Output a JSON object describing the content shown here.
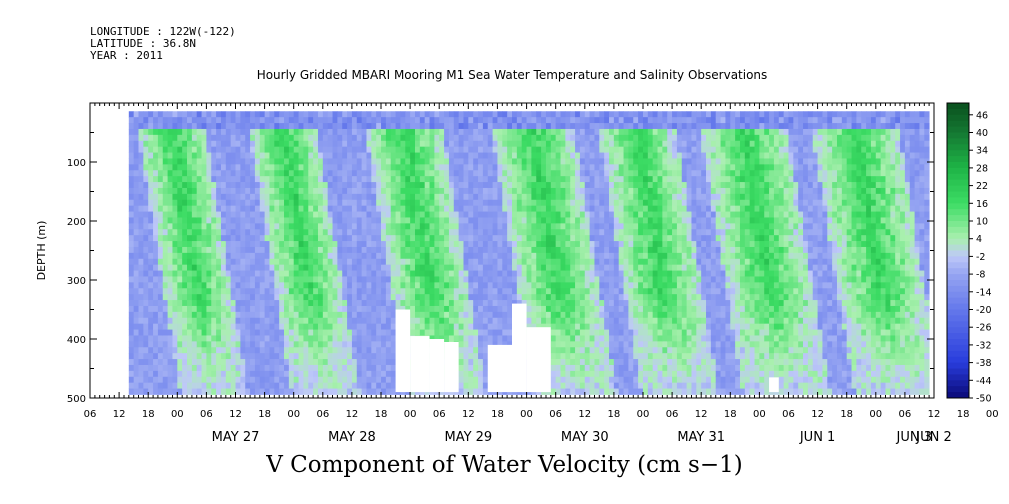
{
  "header": {
    "longitude": "LONGITUDE : 122W(-122)",
    "latitude": "LATITUDE : 36.8N",
    "year": "YEAR : 2011"
  },
  "chart_data": {
    "type": "heatmap",
    "title": "Hourly Gridded MBARI Mooring M1 Sea Water Temperature and Salinity Observations",
    "variable_title": "V Component of Water Velocity (cm s−1)",
    "ylabel": "DEPTH (m)",
    "ylim": [
      500,
      0
    ],
    "y_ticks": [
      100,
      200,
      300,
      400,
      500
    ],
    "x_range_hours_from_may26_06": [
      0,
      174
    ],
    "x_hour_ticks": [
      "06",
      "12",
      "18",
      "00",
      "06",
      "12",
      "18",
      "00",
      "06",
      "12",
      "18",
      "00",
      "06",
      "12",
      "18",
      "00",
      "06",
      "12",
      "18",
      "00",
      "06",
      "12",
      "18",
      "00",
      "06",
      "12",
      "18",
      "00",
      "06",
      "12",
      "18",
      "00",
      "06"
    ],
    "day_labels": [
      {
        "label": "MAY 27",
        "hour": 30
      },
      {
        "label": "MAY 28",
        "hour": 54
      },
      {
        "label": "MAY 29",
        "hour": 78
      },
      {
        "label": "MAY 30",
        "hour": 102
      },
      {
        "label": "MAY 31",
        "hour": 126
      },
      {
        "label": "JUN  1",
        "hour": 150
      },
      {
        "label": "JUN  2",
        "hour": 174
      },
      {
        "label": "JUN  3",
        "hour": 198
      }
    ],
    "data_extent": {
      "start_hour": 8,
      "end_hour": 173,
      "top_depth": 14,
      "bottom_depth": 490
    },
    "colorbar": {
      "levels": [
        46,
        40,
        34,
        28,
        22,
        16,
        10,
        4,
        -2,
        -8,
        -14,
        -20,
        -26,
        -32,
        -38,
        -44,
        -50
      ],
      "range": [
        -50,
        50
      ]
    },
    "positive_bands_hours": [
      [
        14,
        24
      ],
      [
        37,
        47
      ],
      [
        61,
        73
      ],
      [
        87,
        100
      ],
      [
        109,
        121
      ],
      [
        130,
        144
      ],
      [
        153,
        167
      ]
    ],
    "colors": {
      "positive": "#22d060",
      "light_positive": "#a8f0b0",
      "light_negative": "#b8c4f4",
      "negative": "#7f8ef0",
      "strong_negative": "#3a4ee8",
      "missing": "#ffffff"
    },
    "grid": false,
    "legend": "right"
  }
}
